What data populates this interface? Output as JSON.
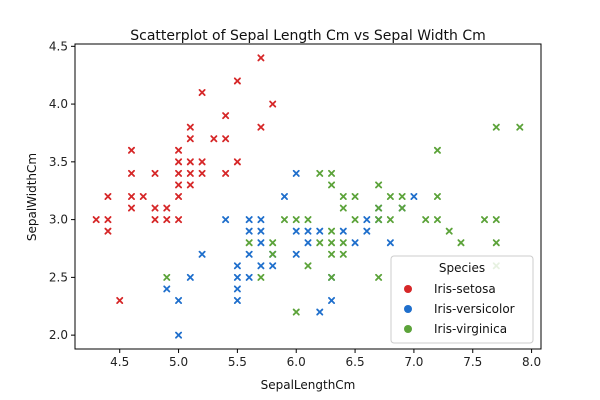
{
  "chart_data": {
    "type": "scatter",
    "title": "Scatterplot of Sepal Length Cm vs Sepal Width Cm",
    "xlabel": "SepalLengthCm",
    "ylabel": "SepalWidthCm",
    "xlim": [
      4.12,
      8.08
    ],
    "ylim": [
      1.88,
      4.52
    ],
    "xticks": [
      "4.5",
      "5.0",
      "5.5",
      "6.0",
      "6.5",
      "7.0",
      "7.5",
      "8.0"
    ],
    "yticks": [
      "2.0",
      "2.5",
      "3.0",
      "3.5",
      "4.0",
      "4.5"
    ],
    "grid": false,
    "legend": {
      "title": "Species",
      "placement": "lower-right",
      "entries": [
        "Iris-setosa",
        "Iris-versicolor",
        "Iris-virginica"
      ]
    },
    "series": [
      {
        "name": "Iris-setosa",
        "color": "#d62728",
        "marker": "x",
        "points": [
          [
            4.3,
            3.0
          ],
          [
            4.4,
            3.2
          ],
          [
            4.4,
            3.0
          ],
          [
            4.4,
            2.9
          ],
          [
            4.5,
            2.3
          ],
          [
            4.6,
            3.6
          ],
          [
            4.6,
            3.4
          ],
          [
            4.6,
            3.2
          ],
          [
            4.6,
            3.1
          ],
          [
            4.7,
            3.2
          ],
          [
            4.8,
            3.4
          ],
          [
            4.8,
            3.1
          ],
          [
            4.8,
            3.0
          ],
          [
            4.9,
            3.1
          ],
          [
            4.9,
            3.0
          ],
          [
            5.0,
            3.6
          ],
          [
            5.0,
            3.5
          ],
          [
            5.0,
            3.4
          ],
          [
            5.0,
            3.3
          ],
          [
            5.0,
            3.2
          ],
          [
            5.0,
            3.0
          ],
          [
            5.1,
            3.8
          ],
          [
            5.1,
            3.7
          ],
          [
            5.1,
            3.5
          ],
          [
            5.1,
            3.4
          ],
          [
            5.1,
            3.3
          ],
          [
            5.2,
            4.1
          ],
          [
            5.2,
            3.5
          ],
          [
            5.2,
            3.4
          ],
          [
            5.3,
            3.7
          ],
          [
            5.4,
            3.9
          ],
          [
            5.4,
            3.7
          ],
          [
            5.4,
            3.4
          ],
          [
            5.5,
            4.2
          ],
          [
            5.5,
            3.5
          ],
          [
            5.7,
            4.4
          ],
          [
            5.7,
            3.8
          ],
          [
            5.8,
            4.0
          ]
        ]
      },
      {
        "name": "Iris-versicolor",
        "color": "#1f6fcc",
        "marker": "x",
        "points": [
          [
            4.9,
            2.4
          ],
          [
            5.0,
            2.3
          ],
          [
            5.0,
            2.0
          ],
          [
            5.1,
            2.5
          ],
          [
            5.2,
            2.7
          ],
          [
            5.4,
            3.0
          ],
          [
            5.5,
            2.6
          ],
          [
            5.5,
            2.5
          ],
          [
            5.5,
            2.4
          ],
          [
            5.5,
            2.3
          ],
          [
            5.6,
            3.0
          ],
          [
            5.6,
            2.9
          ],
          [
            5.6,
            2.7
          ],
          [
            5.6,
            2.5
          ],
          [
            5.7,
            3.0
          ],
          [
            5.7,
            2.9
          ],
          [
            5.7,
            2.8
          ],
          [
            5.7,
            2.6
          ],
          [
            5.8,
            2.7
          ],
          [
            5.8,
            2.6
          ],
          [
            5.9,
            3.2
          ],
          [
            6.0,
            3.4
          ],
          [
            6.0,
            2.9
          ],
          [
            6.0,
            2.7
          ],
          [
            6.1,
            2.9
          ],
          [
            6.1,
            2.8
          ],
          [
            6.2,
            2.9
          ],
          [
            6.2,
            2.2
          ],
          [
            6.3,
            2.5
          ],
          [
            6.3,
            2.3
          ],
          [
            6.4,
            2.9
          ],
          [
            6.5,
            2.8
          ],
          [
            6.6,
            3.0
          ],
          [
            6.6,
            2.9
          ],
          [
            6.7,
            3.1
          ],
          [
            6.7,
            3.0
          ],
          [
            6.8,
            2.8
          ],
          [
            6.9,
            3.1
          ],
          [
            7.0,
            3.2
          ]
        ]
      },
      {
        "name": "Iris-virginica",
        "color": "#5ca33a",
        "marker": "x",
        "points": [
          [
            4.9,
            2.5
          ],
          [
            5.6,
            2.8
          ],
          [
            5.7,
            2.5
          ],
          [
            5.8,
            2.8
          ],
          [
            5.8,
            2.7
          ],
          [
            5.9,
            3.0
          ],
          [
            6.0,
            3.0
          ],
          [
            6.0,
            2.2
          ],
          [
            6.1,
            3.0
          ],
          [
            6.1,
            2.6
          ],
          [
            6.2,
            3.4
          ],
          [
            6.2,
            2.8
          ],
          [
            6.3,
            3.4
          ],
          [
            6.3,
            3.3
          ],
          [
            6.3,
            2.9
          ],
          [
            6.3,
            2.8
          ],
          [
            6.3,
            2.7
          ],
          [
            6.3,
            2.5
          ],
          [
            6.4,
            3.2
          ],
          [
            6.4,
            3.1
          ],
          [
            6.4,
            2.8
          ],
          [
            6.4,
            2.7
          ],
          [
            6.5,
            3.2
          ],
          [
            6.5,
            3.0
          ],
          [
            6.7,
            3.3
          ],
          [
            6.7,
            3.1
          ],
          [
            6.7,
            3.0
          ],
          [
            6.7,
            2.5
          ],
          [
            6.8,
            3.2
          ],
          [
            6.8,
            3.0
          ],
          [
            6.9,
            3.2
          ],
          [
            6.9,
            3.1
          ],
          [
            7.1,
            3.0
          ],
          [
            7.2,
            3.6
          ],
          [
            7.2,
            3.2
          ],
          [
            7.2,
            3.0
          ],
          [
            7.3,
            2.9
          ],
          [
            7.4,
            2.8
          ],
          [
            7.6,
            3.0
          ],
          [
            7.7,
            3.8
          ],
          [
            7.7,
            3.0
          ],
          [
            7.7,
            2.8
          ],
          [
            7.7,
            2.6
          ],
          [
            7.9,
            3.8
          ]
        ]
      }
    ]
  }
}
